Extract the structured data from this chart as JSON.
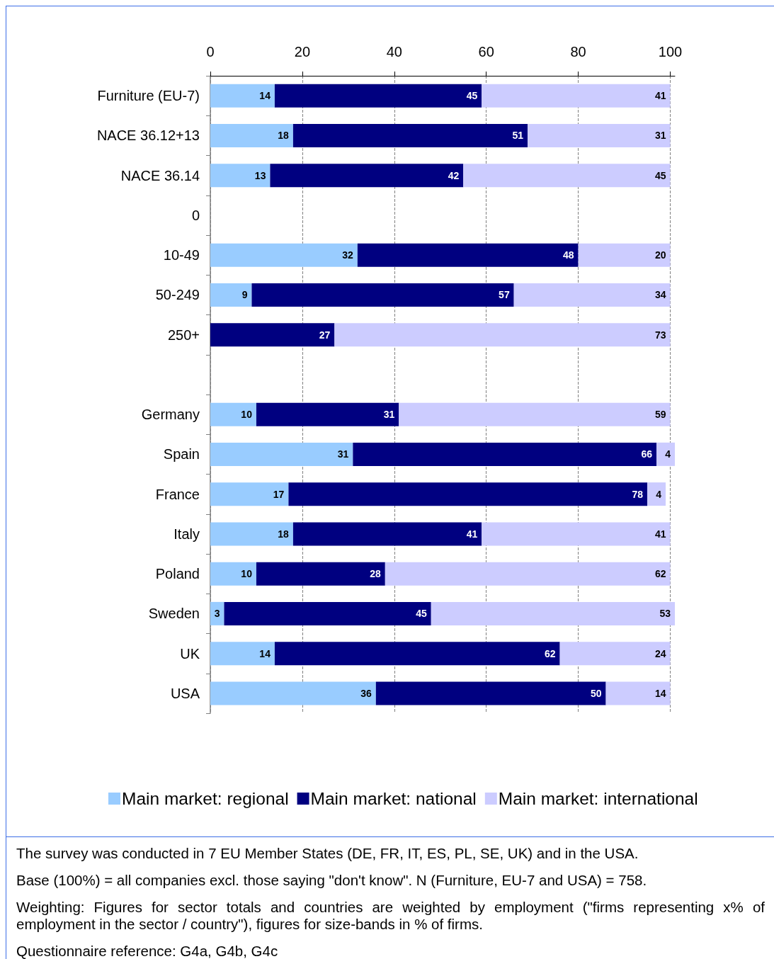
{
  "chart_data": {
    "type": "bar",
    "orientation": "horizontal",
    "stacked": true,
    "categories": [
      "Furniture (EU-7)",
      "NACE 36.12+13",
      "NACE 36.14",
      "0",
      "10-49",
      "50-249",
      "250+",
      null,
      "Germany",
      "Spain",
      "France",
      "Italy",
      "Poland",
      "Sweden",
      "UK",
      "USA"
    ],
    "series": [
      {
        "name": "Main market: regional",
        "color": "#99ccff",
        "values": [
          14,
          18,
          13,
          null,
          32,
          9,
          null,
          null,
          10,
          31,
          17,
          18,
          10,
          3,
          14,
          36
        ]
      },
      {
        "name": "Main market: national",
        "color": "#000080",
        "values": [
          45,
          51,
          42,
          null,
          48,
          57,
          27,
          null,
          31,
          66,
          78,
          41,
          28,
          45,
          62,
          50
        ]
      },
      {
        "name": "Main market: international",
        "color": "#ccccff",
        "values": [
          41,
          31,
          45,
          null,
          20,
          34,
          73,
          null,
          59,
          4,
          4,
          41,
          62,
          53,
          24,
          14
        ]
      }
    ],
    "xlim": [
      0,
      101
    ],
    "xticks": [
      0,
      20,
      40,
      60,
      80,
      100
    ],
    "grid": "x",
    "legend": "bottom",
    "data_labels": true,
    "annotations": [
      "The survey was conducted in 7 EU Member States (DE, FR, IT, ES, PL, SE, UK) and in the USA.",
      "Base (100%) = all companies excl. those saying \"don't know\". N (Furniture, EU-7 and USA) = 758.",
      "Weighting: Figures for sector totals and countries are weighted by employment (\"firms representing x% of employment in the sector / country\"), figures for size-bands in % of firms.",
      "Questionnaire reference: G4a, G4b, G4c"
    ]
  }
}
